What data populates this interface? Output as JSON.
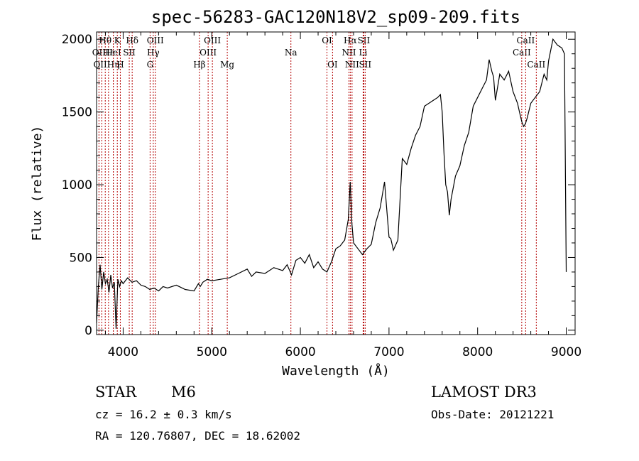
{
  "chart_data": {
    "type": "line",
    "title": "spec-56283-GAC120N18V2_sp09-209.fits",
    "xlabel": "Wavelength (Å)",
    "ylabel": "Flux (relative)",
    "xlim": [
      3700,
      9100
    ],
    "ylim": [
      -30,
      2050
    ],
    "xticks": [
      4000,
      5000,
      6000,
      7000,
      8000,
      9000
    ],
    "yticks": [
      0,
      500,
      1000,
      1500,
      2000
    ],
    "series": [
      {
        "name": "flux",
        "x": [
          3700,
          3720,
          3740,
          3760,
          3780,
          3800,
          3820,
          3840,
          3860,
          3880,
          3900,
          3920,
          3940,
          3960,
          3980,
          4000,
          4050,
          4100,
          4150,
          4200,
          4250,
          4300,
          4350,
          4400,
          4450,
          4500,
          4600,
          4700,
          4800,
          4850,
          4870,
          4900,
          4950,
          5000,
          5100,
          5200,
          5300,
          5400,
          5450,
          5500,
          5600,
          5700,
          5800,
          5850,
          5900,
          5950,
          6000,
          6050,
          6100,
          6150,
          6200,
          6250,
          6300,
          6350,
          6400,
          6450,
          6500,
          6540,
          6563,
          6580,
          6600,
          6650,
          6700,
          6750,
          6800,
          6850,
          6900,
          6950,
          7000,
          7020,
          7050,
          7100,
          7150,
          7200,
          7250,
          7300,
          7350,
          7400,
          7450,
          7500,
          7550,
          7580,
          7600,
          7620,
          7640,
          7660,
          7680,
          7700,
          7750,
          7800,
          7850,
          7900,
          7950,
          8000,
          8050,
          8100,
          8130,
          8160,
          8180,
          8200,
          8250,
          8300,
          8350,
          8400,
          8450,
          8480,
          8500,
          8520,
          8540,
          8560,
          8600,
          8650,
          8700,
          8750,
          8780,
          8800,
          8850,
          8900,
          8950,
          8980,
          9000
        ],
        "values": [
          50,
          300,
          450,
          280,
          400,
          320,
          350,
          260,
          380,
          290,
          330,
          10,
          350,
          300,
          340,
          320,
          360,
          330,
          340,
          310,
          300,
          280,
          290,
          270,
          300,
          290,
          310,
          280,
          270,
          320,
          300,
          330,
          350,
          340,
          350,
          360,
          390,
          420,
          370,
          400,
          390,
          430,
          410,
          450,
          380,
          480,
          500,
          460,
          520,
          430,
          470,
          420,
          400,
          470,
          560,
          580,
          620,
          760,
          1020,
          740,
          600,
          560,
          520,
          560,
          590,
          740,
          840,
          1020,
          640,
          630,
          550,
          620,
          1180,
          1140,
          1250,
          1340,
          1400,
          1540,
          1560,
          1580,
          1600,
          1620,
          1500,
          1220,
          1000,
          950,
          790,
          900,
          1060,
          1130,
          1270,
          1360,
          1540,
          1600,
          1660,
          1720,
          1860,
          1780,
          1740,
          1580,
          1760,
          1720,
          1780,
          1640,
          1560,
          1480,
          1430,
          1400,
          1420,
          1460,
          1560,
          1600,
          1640,
          1760,
          1720,
          1850,
          2000,
          1960,
          1940,
          1900,
          400
        ]
      }
    ],
    "lines": [
      {
        "name": "Hθ",
        "wavelength": 3798,
        "row": 1
      },
      {
        "name": "OII",
        "wavelength": 3727,
        "row": 2
      },
      {
        "name": "OIII",
        "wavelength": 3760,
        "row": 3
      },
      {
        "name": "Hε",
        "wavelength": 3835,
        "row": 2
      },
      {
        "name": "Hη",
        "wavelength": 3889,
        "row": 3
      },
      {
        "name": "HeI",
        "wavelength": 3889,
        "row": 2
      },
      {
        "name": "K",
        "wavelength": 3934,
        "row": 1
      },
      {
        "name": "H",
        "wavelength": 3968,
        "row": 3
      },
      {
        "name": "SII",
        "wavelength": 4069,
        "row": 2
      },
      {
        "name": "Hδ",
        "wavelength": 4102,
        "row": 1
      },
      {
        "name": "OIII",
        "wavelength": 4363,
        "row": 1
      },
      {
        "name": "Hγ",
        "wavelength": 4340,
        "row": 2
      },
      {
        "name": "G",
        "wavelength": 4304,
        "row": 3
      },
      {
        "name": "Hβ",
        "wavelength": 4861,
        "row": 3
      },
      {
        "name": "OIII",
        "wavelength": 4959,
        "row": 2
      },
      {
        "name": "OIII",
        "wavelength": 5007,
        "row": 1
      },
      {
        "name": "Mg",
        "wavelength": 5175,
        "row": 3
      },
      {
        "name": "Na",
        "wavelength": 5893,
        "row": 2
      },
      {
        "name": "OI",
        "wavelength": 6300,
        "row": 1
      },
      {
        "name": "OI",
        "wavelength": 6363,
        "row": 3
      },
      {
        "name": "NII",
        "wavelength": 6548,
        "row": 2
      },
      {
        "name": "Hα",
        "wavelength": 6563,
        "row": 1
      },
      {
        "name": "NII",
        "wavelength": 6583,
        "row": 3
      },
      {
        "name": "SII",
        "wavelength": 6716,
        "row": 1
      },
      {
        "name": "SII",
        "wavelength": 6731,
        "row": 3
      },
      {
        "name": "Li",
        "wavelength": 6708,
        "row": 2
      },
      {
        "name": "CaII",
        "wavelength": 8498,
        "row": 2
      },
      {
        "name": "CaII",
        "wavelength": 8542,
        "row": 1
      },
      {
        "name": "CaII",
        "wavelength": 8662,
        "row": 3
      }
    ]
  },
  "annotations": {
    "object_class": "STAR",
    "subclass": "M6",
    "survey": "LAMOST DR3",
    "redshift": "cz = 16.2 ± 0.3 km/s",
    "obs_date": "Obs-Date: 20121221",
    "coords": "RA = 120.76807, DEC =  18.62002"
  },
  "colors": {
    "line_marker": "#b30000",
    "axis": "#000000"
  }
}
